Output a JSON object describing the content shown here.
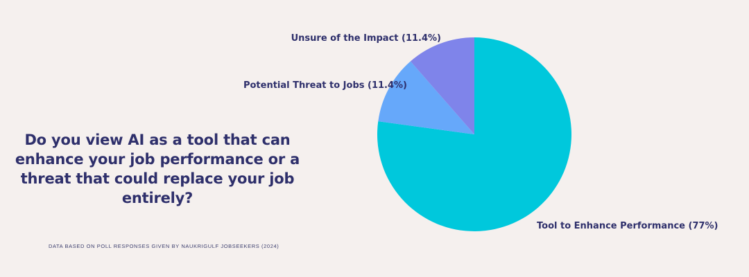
{
  "question": "Do you view AI as a tool that can enhance your job performance or a threat that could replace your job entirely?",
  "source_note": "DATA BASED ON POLL RESPONSES GIVEN BY NAUKRIGULF JOBSEEKERS (2024)",
  "chart_data": {
    "type": "pie",
    "title": "Do you view AI as a tool that can enhance your job performance or a threat that could replace your job entirely?",
    "start": "12 o'clock",
    "direction": "clockwise",
    "slices": [
      {
        "label": "Tool to Enhance Performance (77%)",
        "value": 77.0,
        "color": "#00c8dc"
      },
      {
        "label": "Potential Threat to Jobs (11.4%)",
        "value": 11.4,
        "color": "#66a8fa"
      },
      {
        "label": "Unsure of the Impact (11.4%)",
        "value": 11.4,
        "color": "#7f84ea"
      }
    ]
  }
}
